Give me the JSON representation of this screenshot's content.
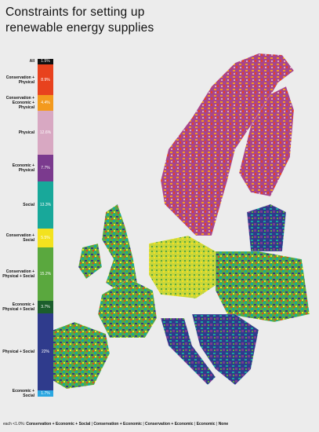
{
  "chart_data": {
    "type": "stacked-bar",
    "title": "Constraints for setting up renewable energy supplies",
    "categories": [
      "All",
      "Conservation + Physical",
      "Conservation + Economic + Physical",
      "Physical",
      "Economic + Physical",
      "Social",
      "Conservation + Social",
      "Conservation + Physical + Social",
      "Economic + Physical + Social",
      "Physical + Social",
      "Economic + Social"
    ],
    "values": [
      1.5,
      8.9,
      4.4,
      12.6,
      7.7,
      13.3,
      5.5,
      15.2,
      3.7,
      22,
      1.7
    ],
    "value_labels": [
      "1.5%",
      "8.9%",
      "4.4%",
      "12.6%",
      "7.7%",
      "13.3%",
      "5.5%",
      "15.2%",
      "3.7%",
      "22%",
      "1.7%"
    ],
    "colors": [
      "#111111",
      "#e8421e",
      "#f39a1e",
      "#d8a8c2",
      "#7b3a8e",
      "#18a89a",
      "#f3e21e",
      "#5aa83e",
      "#1b5e2c",
      "#2f3b8c",
      "#2ba7e1"
    ],
    "footer": {
      "prefix": "each <1.0%:",
      "separator": "|",
      "items": [
        "Conservation + Economic + Social",
        "Conservation + Economic",
        "Conservation + Economic",
        "Economic",
        "None"
      ]
    }
  }
}
